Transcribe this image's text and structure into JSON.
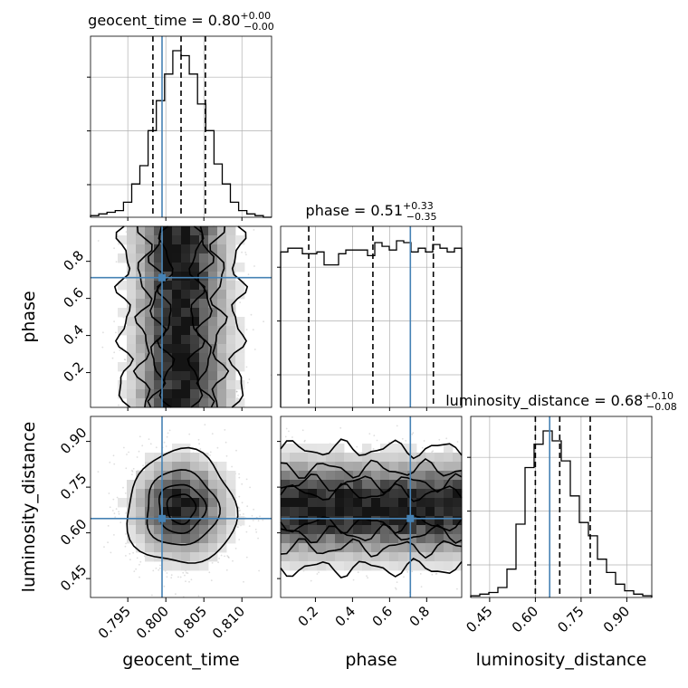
{
  "chart_data": {
    "type": "corner",
    "parameters": [
      "geocent_time",
      "phase",
      "luminosity_distance"
    ],
    "ranges": {
      "geocent_time": [
        0.7901,
        0.8139
      ],
      "phase": [
        0.0124,
        0.9888
      ],
      "luminosity_distance": [
        0.388,
        0.982
      ]
    },
    "truths": {
      "geocent_time": 0.7995,
      "phase": 0.712,
      "luminosity_distance": 0.647
    },
    "quantile_lines": {
      "geocent_time": [
        0.7983,
        0.802,
        0.8052
      ],
      "phase": [
        0.164,
        0.51,
        0.836
      ],
      "luminosity_distance": [
        0.6,
        0.68,
        0.78
      ]
    },
    "titles": {
      "geocent_time": {
        "prefix": "geocent_time = 0.80",
        "sup": "+0.00",
        "sub": "−0.00"
      },
      "phase": {
        "prefix": "phase = 0.51",
        "sup": "+0.33",
        "sub": "−0.35"
      },
      "luminosity_distance": {
        "prefix": "luminosity_distance = 0.68",
        "sup": "+0.10",
        "sub": "−0.08"
      }
    },
    "axis_labels": {
      "geocent_time": "geocent_time",
      "phase": "phase",
      "luminosity_distance": "luminosity_distance"
    },
    "ticks": {
      "geocent_time": {
        "values": [
          0.795,
          0.8,
          0.805,
          0.81
        ],
        "labels": [
          "0.795",
          "0.800",
          "0.805",
          "0.810"
        ]
      },
      "phase": {
        "values": [
          0.2,
          0.4,
          0.6,
          0.8
        ],
        "labels": [
          "0.2",
          "0.4",
          "0.6",
          "0.8"
        ]
      },
      "luminosity_distance": {
        "values": [
          0.45,
          0.6,
          0.75,
          0.9
        ],
        "labels": [
          "0.45",
          "0.60",
          "0.75",
          "0.90"
        ]
      }
    },
    "histograms": {
      "geocent_time": [
        1,
        2,
        3,
        4,
        9,
        20,
        31,
        52,
        70,
        86,
        100,
        97,
        86,
        68,
        52,
        32,
        20,
        9,
        4,
        2,
        1,
        0
      ],
      "phase": [
        84,
        86,
        86,
        83,
        83,
        84,
        77,
        77,
        83,
        85,
        85,
        85,
        82,
        89,
        87,
        85,
        90,
        89,
        84,
        86,
        84,
        88,
        86,
        84,
        86
      ],
      "luminosity_distance": [
        1,
        2,
        3,
        6,
        17,
        44,
        78,
        92,
        100,
        94,
        82,
        61,
        45,
        37,
        23,
        15,
        8,
        4,
        2,
        1
      ]
    },
    "contour_levels": [
      0.118,
      0.393,
      0.675,
      0.865
    ],
    "colors": {
      "truth": "#4682b4",
      "line": "#000000",
      "grid": "#b0b0b0"
    }
  }
}
